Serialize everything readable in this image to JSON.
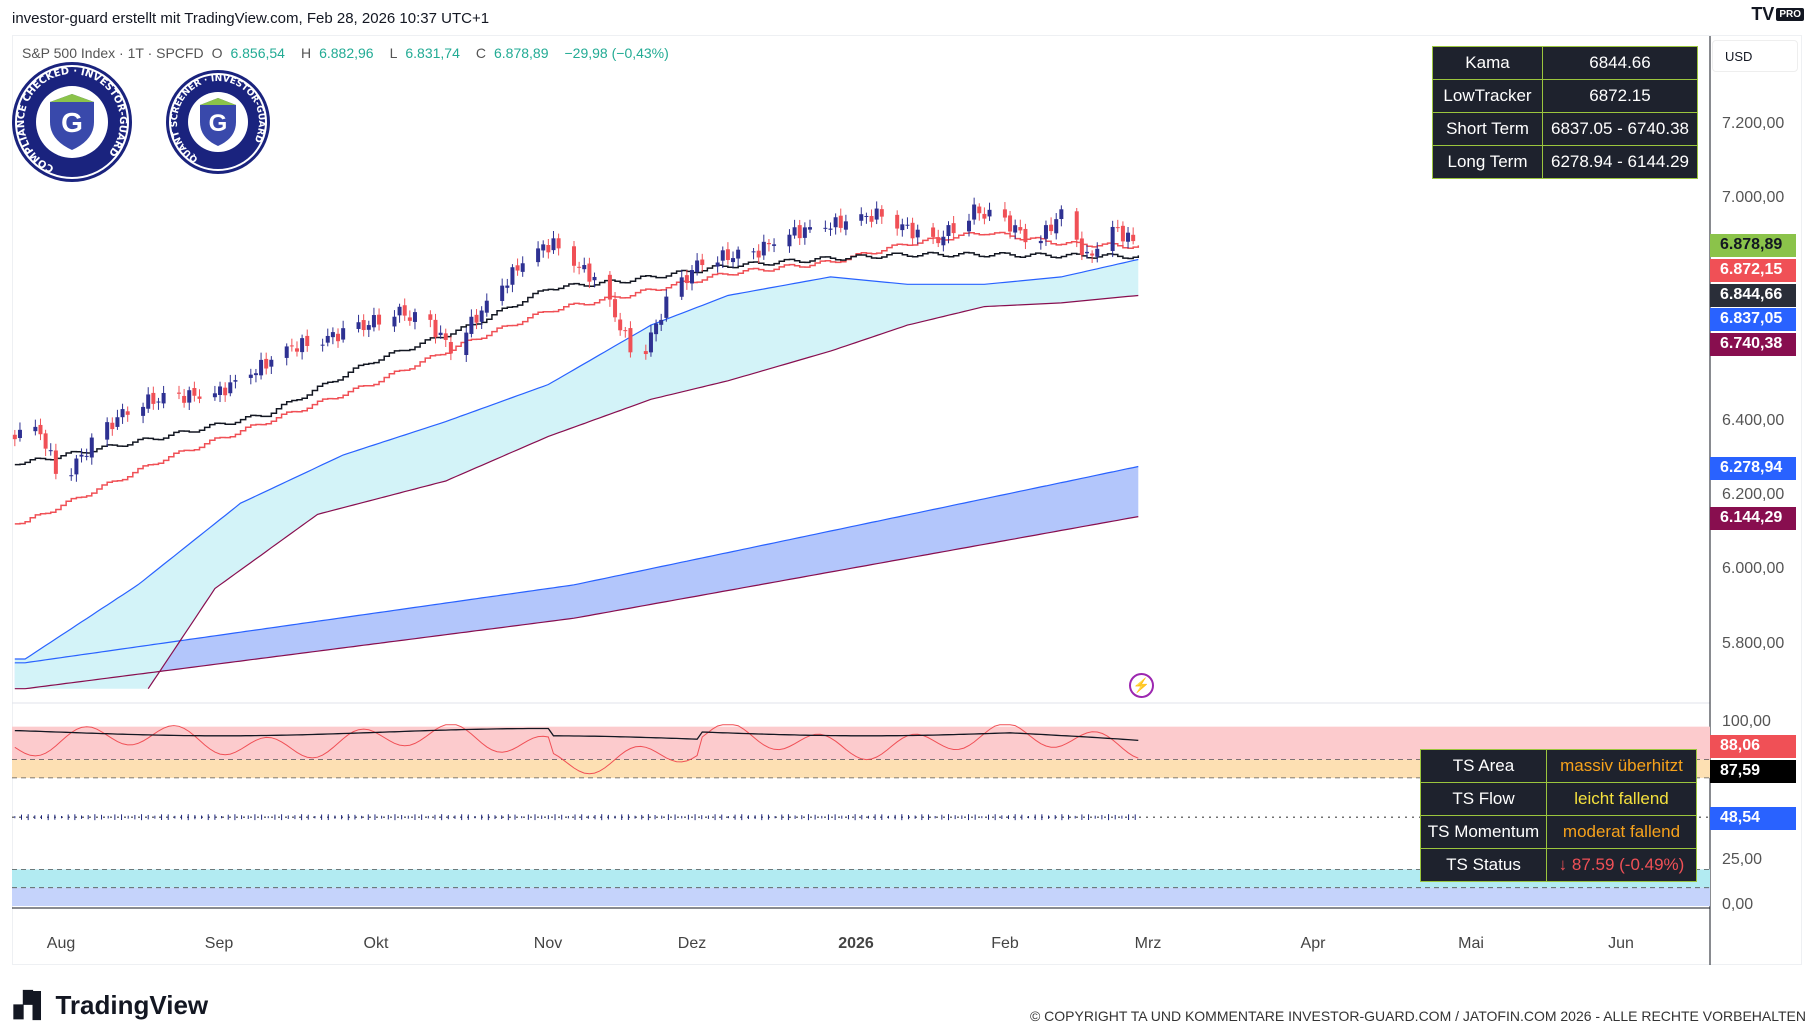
{
  "header": {
    "title": "investor-guard erstellt mit TradingView.com, Feb 28, 2026 10:37 UTC+1",
    "brand": "PRO"
  },
  "legend": {
    "symbol": "S&P 500 Index · 1T · SPCFD",
    "o_label": "O",
    "o": "6.856,54",
    "h_label": "H",
    "h": "6.882,96",
    "l_label": "L",
    "l": "6.831,74",
    "c_label": "C",
    "c": "6.878,89",
    "change": "−29,98 (−0,43%)"
  },
  "badges": [
    {
      "text": "COMPLIANCE CHECKED · INVESTOR-GUARD",
      "letter": "G"
    },
    {
      "text": "QUANT SCREENER · INVESTOR-GUARD",
      "letter": "G"
    }
  ],
  "table_top": [
    [
      "Kama",
      "6844.66"
    ],
    [
      "LowTracker",
      "6872.15"
    ],
    [
      "Short Term",
      "6837.05 - 6740.38"
    ],
    [
      "Long Term",
      "6278.94 - 6144.29"
    ]
  ],
  "table_ind": [
    {
      "k": "TS Area",
      "v": "massiv überhitzt",
      "color": "#f7a21b"
    },
    {
      "k": "TS Flow",
      "v": "leicht fallend",
      "color": "#f5e13d"
    },
    {
      "k": "TS Momentum",
      "v": "moderat fallend",
      "color": "#f7a21b"
    },
    {
      "k": "TS Status",
      "v": "↓ 87.59 (-0.49%)",
      "color": "#f05056"
    }
  ],
  "currency": "USD",
  "price_axis": [
    "7.200,00",
    "7.000,00",
    "6.400,00",
    "6.200,00",
    "6.000,00",
    "5.800,00"
  ],
  "price_labels": [
    {
      "text": "6.878,89",
      "color": "#8bc34a",
      "textcolor": "#131722"
    },
    {
      "text": "6.872,15",
      "color": "#f05056",
      "textcolor": "#fff"
    },
    {
      "text": "6.844,66",
      "color": "#2a2e39",
      "textcolor": "#fff"
    },
    {
      "text": "6.837,05",
      "color": "#2962ff",
      "textcolor": "#fff"
    },
    {
      "text": "6.740,38",
      "color": "#880e4f",
      "textcolor": "#fff"
    },
    {
      "text": "6.278,94",
      "color": "#2962ff",
      "textcolor": "#fff"
    },
    {
      "text": "6.144,29",
      "color": "#880e4f",
      "textcolor": "#fff"
    }
  ],
  "ind_axis": [
    "100,00",
    "25,00",
    "0,00"
  ],
  "ind_labels": [
    {
      "text": "88,06",
      "color": "#f05056",
      "textcolor": "#fff"
    },
    {
      "text": "87,59",
      "color": "#000",
      "textcolor": "#fff"
    },
    {
      "text": "48,54",
      "color": "#2962ff",
      "textcolor": "#fff"
    }
  ],
  "time_axis": [
    "Aug",
    "Sep",
    "Okt",
    "Nov",
    "Dez",
    "2026",
    "Feb",
    "Mrz",
    "Apr",
    "Mai",
    "Jun"
  ],
  "footer": {
    "logo": "TradingView",
    "copyright": "© COPYRIGHT TA UND KOMMENTARE INVESTOR-GUARD.COM / JATOFIN.COM 2026 - ALLE RECHTE VORBEHALTEN"
  },
  "chart_data": {
    "type": "candlestick",
    "x_unit": "days since Aug 1 2025",
    "price_path": [
      [
        -4,
        6370
      ],
      [
        0,
        6240
      ],
      [
        6,
        6340
      ],
      [
        14,
        6450
      ],
      [
        25,
        6470
      ],
      [
        31,
        6480
      ],
      [
        45,
        6600
      ],
      [
        58,
        6650
      ],
      [
        65,
        6700
      ],
      [
        72,
        6660
      ],
      [
        76,
        6600
      ],
      [
        84,
        6730
      ],
      [
        91,
        6850
      ],
      [
        96,
        6880
      ],
      [
        105,
        6770
      ],
      [
        111,
        6600
      ],
      [
        113,
        6570
      ],
      [
        118,
        6720
      ],
      [
        125,
        6840
      ],
      [
        135,
        6850
      ],
      [
        140,
        6900
      ],
      [
        150,
        6930
      ],
      [
        160,
        6960
      ],
      [
        170,
        6880
      ],
      [
        178,
        6970
      ],
      [
        185,
        6930
      ],
      [
        190,
        6880
      ],
      [
        195,
        6960
      ],
      [
        200,
        6840
      ],
      [
        205,
        6920
      ],
      [
        210,
        6879
      ]
    ],
    "kama": [
      [
        -7,
        6290
      ],
      [
        20,
        6360
      ],
      [
        40,
        6420
      ],
      [
        60,
        6560
      ],
      [
        80,
        6660
      ],
      [
        95,
        6760
      ],
      [
        110,
        6780
      ],
      [
        130,
        6820
      ],
      [
        150,
        6840
      ],
      [
        165,
        6850
      ],
      [
        180,
        6850
      ],
      [
        210,
        6845
      ]
    ],
    "lowtracker": [
      [
        -7,
        6130
      ],
      [
        20,
        6300
      ],
      [
        40,
        6400
      ],
      [
        60,
        6500
      ],
      [
        80,
        6620
      ],
      [
        95,
        6700
      ],
      [
        110,
        6740
      ],
      [
        130,
        6800
      ],
      [
        150,
        6830
      ],
      [
        165,
        6880
      ],
      [
        180,
        6910
      ],
      [
        195,
        6880
      ],
      [
        210,
        6872
      ]
    ],
    "short_upper": [
      [
        -7,
        5760
      ],
      [
        15,
        5960
      ],
      [
        35,
        6180
      ],
      [
        55,
        6310
      ],
      [
        75,
        6400
      ],
      [
        95,
        6500
      ],
      [
        115,
        6660
      ],
      [
        130,
        6740
      ],
      [
        150,
        6790
      ],
      [
        165,
        6770
      ],
      [
        180,
        6770
      ],
      [
        195,
        6790
      ],
      [
        210,
        6837
      ]
    ],
    "short_lower": [
      [
        17,
        5680
      ],
      [
        30,
        5950
      ],
      [
        50,
        6150
      ],
      [
        75,
        6240
      ],
      [
        95,
        6360
      ],
      [
        115,
        6460
      ],
      [
        130,
        6510
      ],
      [
        150,
        6590
      ],
      [
        165,
        6660
      ],
      [
        180,
        6710
      ],
      [
        195,
        6720
      ],
      [
        210,
        6740
      ]
    ],
    "long_upper": [
      [
        -7,
        5750
      ],
      [
        100,
        5960
      ],
      [
        210,
        6279
      ]
    ],
    "long_lower": [
      [
        -7,
        5680
      ],
      [
        100,
        5870
      ],
      [
        210,
        6144
      ]
    ],
    "ind_zones": {
      "overbought": [
        80,
        98
      ],
      "warm": [
        70,
        80
      ],
      "cool": [
        10,
        20
      ],
      "cold": [
        0,
        10
      ]
    },
    "ind_value": 87.59,
    "ind_signal": 88.06,
    "ind_mid": 48.54
  }
}
